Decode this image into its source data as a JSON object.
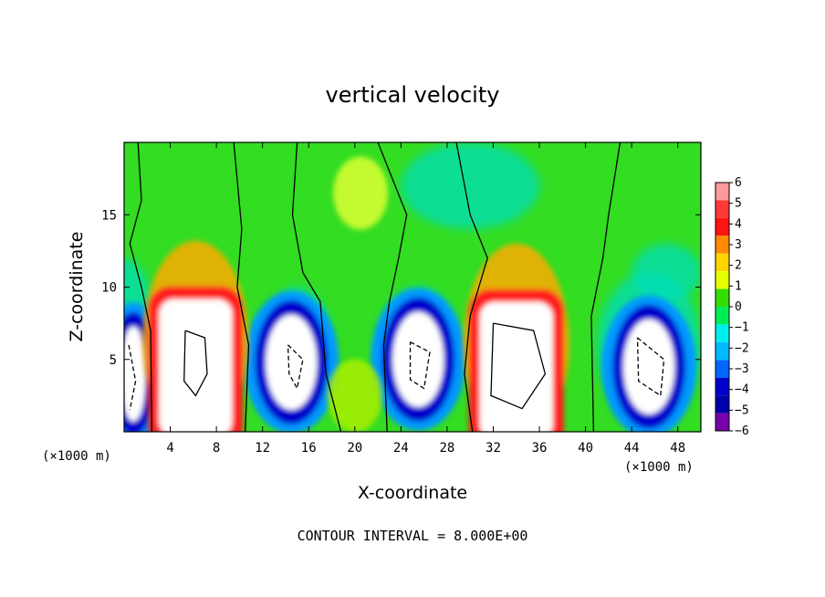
{
  "chart_data": {
    "type": "heatmap",
    "title": "vertical velocity",
    "xlabel": "X-coordinate",
    "ylabel": "Z-coordinate",
    "x_unit": "(×1000 m)",
    "z_unit": "(×1000 m)",
    "xlim": [
      0,
      50
    ],
    "ylim": [
      0,
      20
    ],
    "x_ticks": [
      4,
      8,
      12,
      16,
      20,
      24,
      28,
      32,
      36,
      40,
      44,
      48
    ],
    "y_ticks": [
      5,
      10,
      15
    ],
    "colorbar": {
      "levels": [
        6,
        5,
        4,
        3,
        2,
        1,
        0,
        -1,
        -2,
        -3,
        -4,
        -5,
        -6
      ],
      "colors": [
        "#ff9a9a",
        "#ff3838",
        "#ff1414",
        "#ff8c00",
        "#ffd400",
        "#e6ff00",
        "#33dd00",
        "#00ee55",
        "#00eeee",
        "#00bbff",
        "#0066ff",
        "#0000cc",
        "#0000aa",
        "#7700aa"
      ]
    },
    "updrafts": [
      {
        "x": 6.2,
        "z": 5.0,
        "peak": 12
      },
      {
        "x": 34.0,
        "z": 4.8,
        "peak": 12
      },
      {
        "x": 20.0,
        "z": 2.5,
        "peak": 3
      },
      {
        "x": 20.5,
        "z": 16.5,
        "peak": 1.5
      }
    ],
    "downdrafts": [
      {
        "x": 0.8,
        "z": 4.0,
        "peak": -8
      },
      {
        "x": 14.5,
        "z": 4.8,
        "peak": -8
      },
      {
        "x": 25.5,
        "z": 5.0,
        "peak": -8
      },
      {
        "x": 45.5,
        "z": 4.5,
        "peak": -10
      }
    ],
    "note": "CONTOUR INTERVAL = 8.000E+00"
  }
}
